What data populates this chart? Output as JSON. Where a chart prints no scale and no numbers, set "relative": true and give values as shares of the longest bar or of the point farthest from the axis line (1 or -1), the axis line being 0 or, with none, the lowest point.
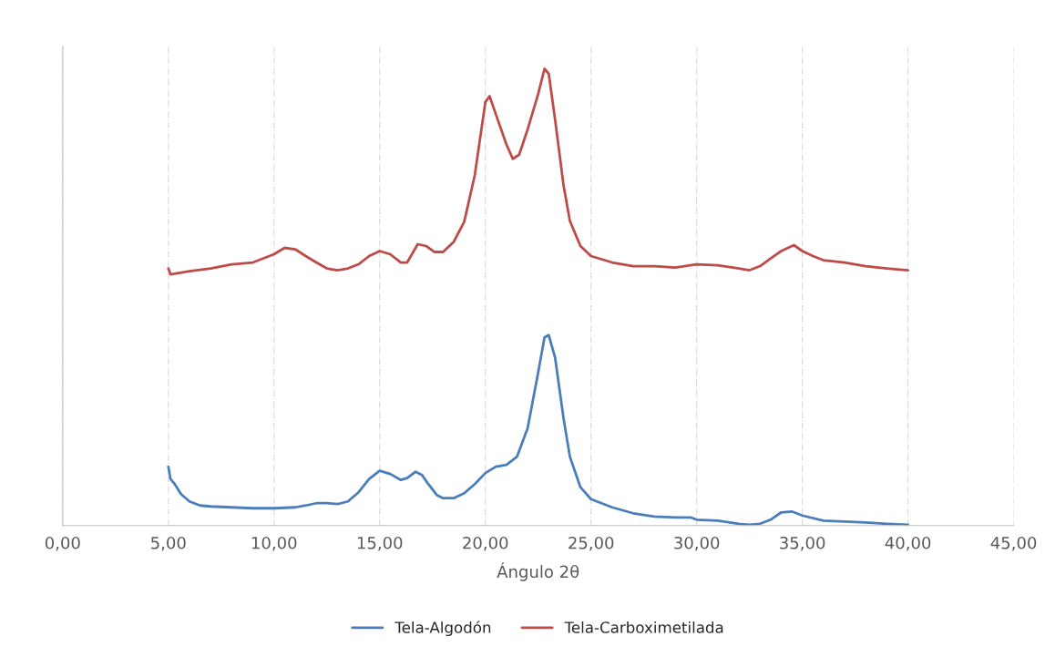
{
  "chart_data": {
    "type": "line",
    "xlabel": "Ángulo 2θ",
    "relative": true,
    "grid": "x",
    "legend": "bottom",
    "tick_labels": "x",
    "line_style": "solid",
    "marker": "none",
    "xlim": [
      0,
      45
    ],
    "xticks": [
      {
        "value": 0,
        "label": "0,00"
      },
      {
        "value": 5,
        "label": "5,00"
      },
      {
        "value": 10,
        "label": "10,00"
      },
      {
        "value": 15,
        "label": "15,00"
      },
      {
        "value": 20,
        "label": "20,00"
      },
      {
        "value": 25,
        "label": "25,00"
      },
      {
        "value": 30,
        "label": "30,00"
      },
      {
        "value": 35,
        "label": "35,00"
      },
      {
        "value": 40,
        "label": "40,00"
      },
      {
        "value": 45,
        "label": "45,00"
      }
    ],
    "series": [
      {
        "name": "Tela-Algodón",
        "color": "#4a7ebb",
        "x": [
          5,
          5.1,
          5.3,
          5.6,
          6,
          6.5,
          7,
          8,
          9,
          10,
          11,
          11.5,
          12,
          12.5,
          13,
          13.5,
          14,
          14.5,
          15,
          15.5,
          16,
          16.3,
          16.7,
          17,
          17.3,
          17.7,
          18,
          18.5,
          19,
          19.5,
          20,
          20.5,
          21,
          21.5,
          22,
          22.5,
          22.8,
          23,
          23.3,
          23.7,
          24,
          24.5,
          25,
          26,
          27,
          28,
          29,
          29.7,
          30,
          31,
          32,
          32.5,
          33,
          33.5,
          34,
          34.5,
          35,
          36,
          37,
          38,
          39,
          40
        ],
        "values": [
          0.129,
          0.102,
          0.091,
          0.069,
          0.053,
          0.044,
          0.042,
          0.04,
          0.038,
          0.038,
          0.04,
          0.044,
          0.049,
          0.049,
          0.047,
          0.053,
          0.073,
          0.102,
          0.12,
          0.113,
          0.1,
          0.104,
          0.118,
          0.111,
          0.091,
          0.067,
          0.06,
          0.06,
          0.071,
          0.091,
          0.115,
          0.129,
          0.133,
          0.151,
          0.213,
          0.335,
          0.412,
          0.417,
          0.368,
          0.235,
          0.151,
          0.084,
          0.058,
          0.04,
          0.027,
          0.02,
          0.018,
          0.018,
          0.013,
          0.011,
          0.004,
          0.002,
          0.004,
          0.013,
          0.029,
          0.031,
          0.022,
          0.011,
          0.009,
          0.007,
          0.004,
          0.002
        ]
      },
      {
        "name": "Tela-Carboximetilada",
        "color": "#be4b48",
        "x": [
          5,
          5.1,
          6,
          7,
          8,
          9,
          9.5,
          10,
          10.5,
          11,
          11.5,
          12,
          12.5,
          13,
          13.5,
          14,
          14.5,
          15,
          15.5,
          16,
          16.3,
          16.8,
          17.2,
          17.6,
          18,
          18.5,
          19,
          19.5,
          20,
          20.2,
          20.5,
          21,
          21.3,
          21.6,
          22,
          22.5,
          22.8,
          23,
          23.3,
          23.7,
          24,
          24.5,
          25,
          26,
          27,
          28,
          29,
          30,
          31,
          32,
          32.5,
          33,
          33.5,
          34,
          34.6,
          35,
          35.5,
          36,
          37,
          38,
          39,
          40
        ],
        "values": [
          0.563,
          0.55,
          0.557,
          0.563,
          0.572,
          0.576,
          0.585,
          0.594,
          0.608,
          0.605,
          0.59,
          0.576,
          0.563,
          0.559,
          0.563,
          0.572,
          0.59,
          0.601,
          0.594,
          0.576,
          0.576,
          0.616,
          0.612,
          0.599,
          0.599,
          0.621,
          0.665,
          0.767,
          0.927,
          0.94,
          0.9,
          0.834,
          0.803,
          0.812,
          0.867,
          0.945,
          1.0,
          0.989,
          0.889,
          0.745,
          0.667,
          0.612,
          0.59,
          0.576,
          0.568,
          0.568,
          0.565,
          0.572,
          0.57,
          0.563,
          0.559,
          0.568,
          0.585,
          0.601,
          0.614,
          0.601,
          0.59,
          0.581,
          0.576,
          0.568,
          0.563,
          0.559
        ]
      }
    ]
  }
}
